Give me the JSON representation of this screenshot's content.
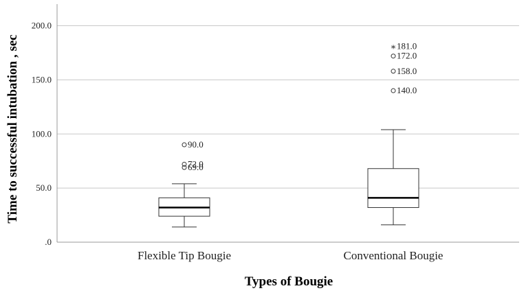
{
  "chart_data": {
    "type": "box",
    "title": "",
    "xlabel": "Types of Bougie",
    "ylabel": "Time to successful intubation , sec",
    "ylim": [
      0,
      220
    ],
    "yticks": [
      {
        "value": 0,
        "label": ".0"
      },
      {
        "value": 50,
        "label": "50.0"
      },
      {
        "value": 100,
        "label": "100.0"
      },
      {
        "value": 150,
        "label": "150.0"
      },
      {
        "value": 200,
        "label": "200.0"
      }
    ],
    "grid": true,
    "categories": [
      "Flexible Tip Bougie",
      "Conventional Bougie"
    ],
    "boxes": [
      {
        "category": "Flexible Tip Bougie",
        "min": 14,
        "q1": 24,
        "median": 32,
        "q3": 41,
        "max": 54,
        "outliers": [
          {
            "value": 90,
            "label": "90.0",
            "marker": "circle"
          },
          {
            "value": 72,
            "label": "72.0",
            "marker": "circle"
          },
          {
            "value": 69,
            "label": "69.0",
            "marker": "circle"
          }
        ]
      },
      {
        "category": "Conventional Bougie",
        "min": 16,
        "q1": 32,
        "median": 41,
        "q3": 68,
        "max": 104,
        "outliers": [
          {
            "value": 181,
            "label": "181.0",
            "marker": "star"
          },
          {
            "value": 172,
            "label": "172.0",
            "marker": "circle"
          },
          {
            "value": 158,
            "label": "158.0",
            "marker": "circle"
          },
          {
            "value": 140,
            "label": "140.0",
            "marker": "circle"
          }
        ]
      }
    ]
  }
}
